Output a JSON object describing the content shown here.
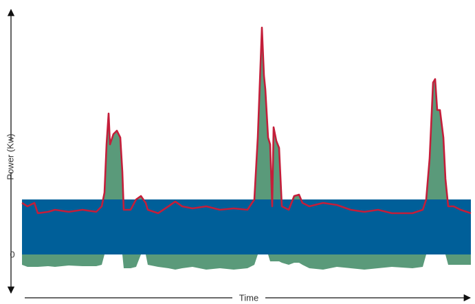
{
  "chart_data": {
    "type": "area",
    "y_label": "Power (Kw)",
    "x_label": "Time",
    "xlim": [
      0,
      653
    ],
    "ylim": [
      -50,
      355
    ],
    "yticks": [
      0
    ],
    "band": {
      "color": "#005f99",
      "value": 80
    },
    "x": [
      0,
      8,
      18,
      23,
      38,
      48,
      68,
      88,
      108,
      116,
      120,
      123,
      126,
      128,
      133,
      138,
      143,
      146,
      148,
      158,
      166,
      173,
      180,
      183,
      198,
      213,
      223,
      233,
      248,
      268,
      288,
      308,
      328,
      338,
      343,
      346,
      349,
      352,
      354,
      358,
      361,
      364,
      366,
      370,
      374,
      378,
      388,
      396,
      403,
      408,
      418,
      438,
      458,
      478,
      498,
      518,
      538,
      568,
      583,
      588,
      593,
      598,
      601,
      604,
      608,
      613,
      616,
      620,
      628,
      638,
      653
    ],
    "series": [
      {
        "color": "#c41e3a",
        "fill": "#5a9a7a",
        "values": [
          75,
          70,
          75,
          60,
          62,
          65,
          62,
          65,
          62,
          70,
          90,
          160,
          205,
          160,
          175,
          180,
          170,
          120,
          65,
          65,
          80,
          85,
          75,
          65,
          60,
          70,
          77,
          70,
          67,
          70,
          65,
          67,
          65,
          80,
          170,
          250,
          330,
          260,
          240,
          170,
          160,
          70,
          185,
          165,
          155,
          70,
          65,
          85,
          87,
          75,
          70,
          75,
          72,
          65,
          62,
          65,
          60,
          60,
          65,
          80,
          140,
          250,
          255,
          210,
          210,
          170,
          110,
          70,
          70,
          65,
          60
        ]
      },
      {
        "color": "#5a9a7a",
        "values": [
          -15,
          -18,
          -18,
          -18,
          -17,
          -18,
          -16,
          -17,
          -17,
          -15,
          0,
          0,
          0,
          0,
          0,
          0,
          0,
          0,
          -20,
          -20,
          -18,
          0,
          0,
          -15,
          -18,
          -20,
          -22,
          -20,
          -18,
          -22,
          -20,
          -22,
          -20,
          -15,
          0,
          0,
          0,
          0,
          0,
          0,
          -10,
          -10,
          -10,
          -10,
          -10,
          -12,
          -15,
          -12,
          -12,
          -15,
          -20,
          -22,
          -18,
          -20,
          -22,
          -20,
          -18,
          -20,
          -18,
          0,
          0,
          0,
          0,
          0,
          0,
          0,
          0,
          -15,
          -15,
          -15,
          -15
        ]
      }
    ]
  }
}
